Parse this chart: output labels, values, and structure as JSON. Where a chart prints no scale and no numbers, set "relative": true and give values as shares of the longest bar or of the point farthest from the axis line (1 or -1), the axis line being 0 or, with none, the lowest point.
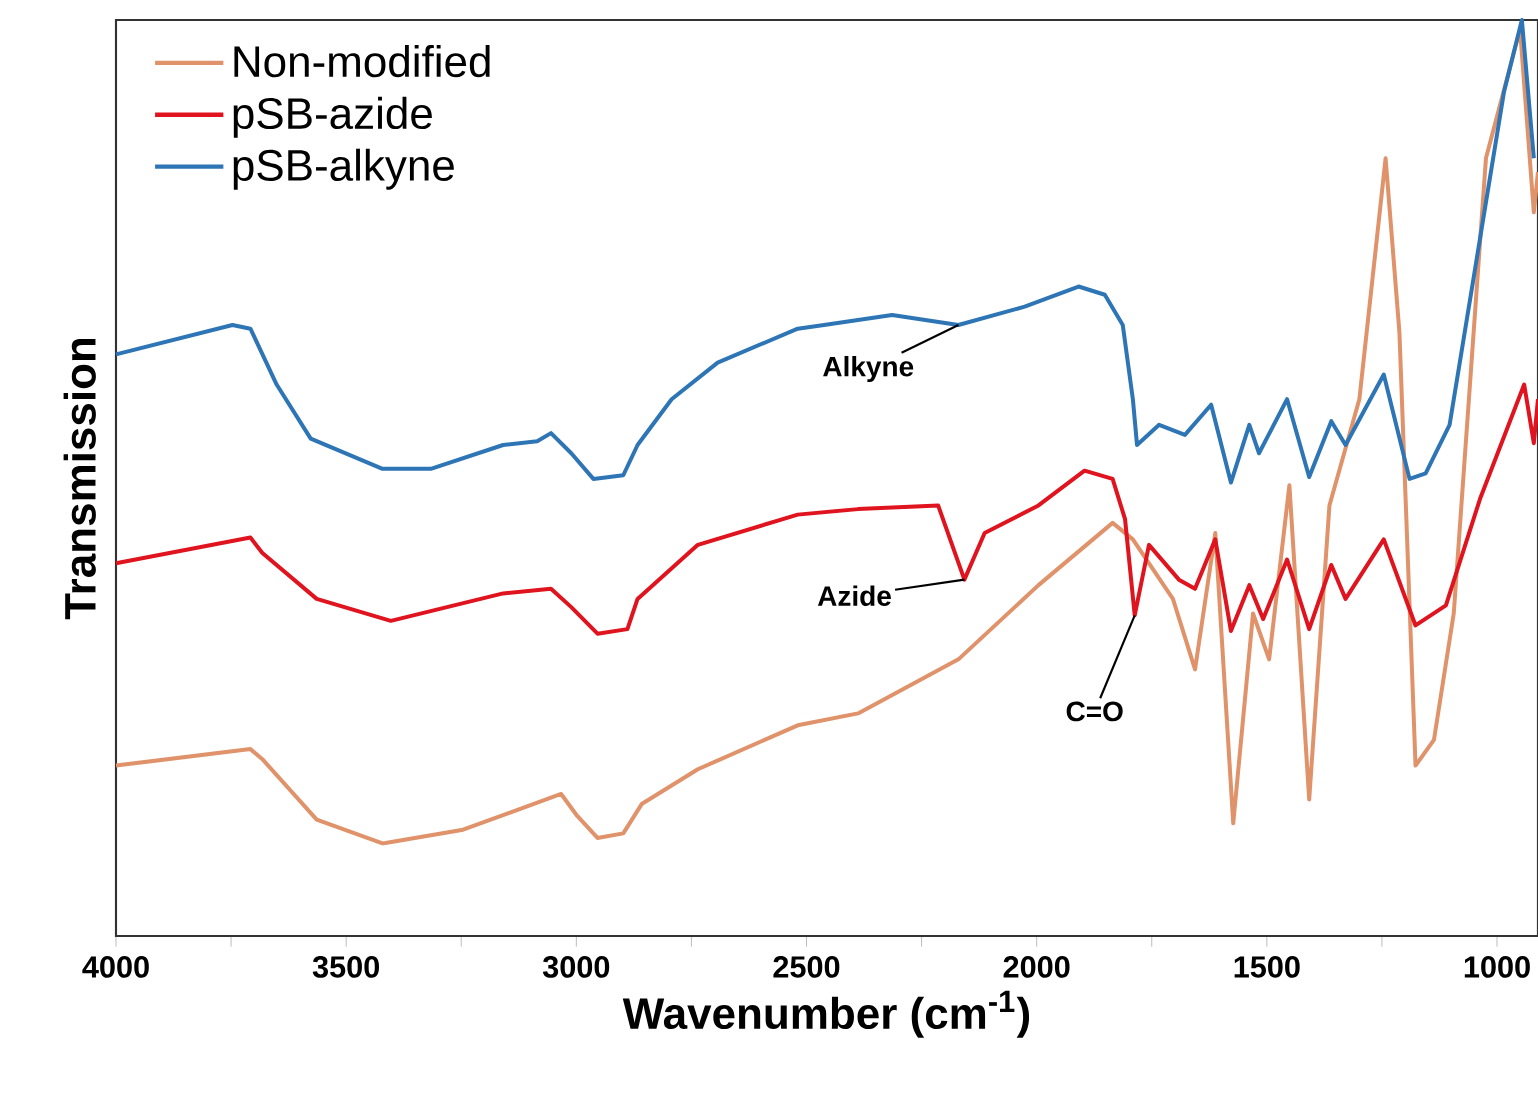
{
  "chart_data": {
    "type": "line",
    "relative": true,
    "xlabel": "Wavenumber (cm$^{-1}$)",
    "ylabel": "Transmission",
    "xlim": [
      4000,
      911
    ],
    "xticks": [
      4000,
      {
        "value": 3750,
        "label": null
      },
      3500,
      {
        "value": 3250,
        "label": null
      },
      3000,
      {
        "value": 2750,
        "label": null
      },
      2500,
      {
        "value": 2250,
        "label": null
      },
      2000,
      {
        "value": 1750,
        "label": null
      },
      1500,
      {
        "value": 1250,
        "label": null
      },
      1000
    ],
    "legend": "top left",
    "series": [
      {
        "name": "Non-modified",
        "color": "#e0926a",
        "x": [
          4000,
          3708,
          3682,
          3564,
          3421,
          3246,
          3033,
          2998,
          2954,
          2898,
          2858,
          2736,
          2519,
          2388,
          2170,
          1996,
          1835,
          1791,
          1704,
          1656,
          1612,
          1573,
          1530,
          1495,
          1451,
          1408,
          1364,
          1299,
          1242,
          1212,
          1177,
          1137,
          1094,
          1024,
          950,
          920,
          911
        ],
        "values": [
          0.186,
          0.204,
          0.193,
          0.127,
          0.101,
          0.116,
          0.155,
          0.131,
          0.107,
          0.112,
          0.144,
          0.182,
          0.23,
          0.243,
          0.302,
          0.383,
          0.451,
          0.433,
          0.368,
          0.291,
          0.44,
          0.123,
          0.352,
          0.302,
          0.492,
          0.149,
          0.47,
          0.586,
          0.849,
          0.659,
          0.186,
          0.214,
          0.352,
          0.849,
          0.99,
          0.79,
          0.834
        ]
      },
      {
        "name": "pSB-azide",
        "color": "#e0141e",
        "x": [
          4000,
          3708,
          3682,
          3564,
          3403,
          3159,
          3055,
          3011,
          2954,
          2889,
          2867,
          2736,
          2519,
          2388,
          2214,
          2157,
          2113,
          1996,
          1896,
          1835,
          1808,
          1787,
          1756,
          1691,
          1656,
          1612,
          1578,
          1538,
          1508,
          1456,
          1408,
          1360,
          1329,
          1246,
          1177,
          1111,
          1037,
          941,
          920,
          911
        ],
        "values": [
          0.407,
          0.435,
          0.418,
          0.368,
          0.344,
          0.374,
          0.379,
          0.359,
          0.33,
          0.335,
          0.368,
          0.427,
          0.46,
          0.466,
          0.47,
          0.389,
          0.44,
          0.47,
          0.508,
          0.499,
          0.455,
          0.35,
          0.427,
          0.389,
          0.379,
          0.433,
          0.333,
          0.383,
          0.346,
          0.411,
          0.335,
          0.405,
          0.368,
          0.433,
          0.339,
          0.361,
          0.477,
          0.602,
          0.538,
          0.586
        ]
      },
      {
        "name": "pSB-alkyne",
        "color": "#2e75b6",
        "x": [
          4000,
          3747,
          3708,
          3651,
          3577,
          3421,
          3316,
          3159,
          3085,
          3055,
          3011,
          2963,
          2898,
          2867,
          2793,
          2693,
          2519,
          2462,
          2314,
          2170,
          2026,
          1909,
          1852,
          1813,
          1791,
          1782,
          1734,
          1678,
          1621,
          1578,
          1538,
          1517,
          1456,
          1408,
          1360,
          1329,
          1246,
          1190,
          1155,
          1103,
          1037,
          985,
          946,
          920
        ],
        "values": [
          0.635,
          0.667,
          0.663,
          0.602,
          0.543,
          0.51,
          0.51,
          0.536,
          0.54,
          0.549,
          0.527,
          0.499,
          0.503,
          0.536,
          0.586,
          0.626,
          0.663,
          0.667,
          0.678,
          0.667,
          0.687,
          0.709,
          0.7,
          0.667,
          0.586,
          0.536,
          0.558,
          0.547,
          0.58,
          0.495,
          0.558,
          0.527,
          0.586,
          0.501,
          0.562,
          0.536,
          0.613,
          0.499,
          0.505,
          0.558,
          0.761,
          0.921,
          1.0,
          0.849
        ]
      }
    ],
    "annotations": [
      {
        "text": "Alkyne",
        "x": 2170,
        "y": 0.667
      },
      {
        "text": "Azide",
        "x": 2157,
        "y": 0.389
      },
      {
        "text": "C=O",
        "x": 1787,
        "y": 0.35
      }
    ]
  }
}
